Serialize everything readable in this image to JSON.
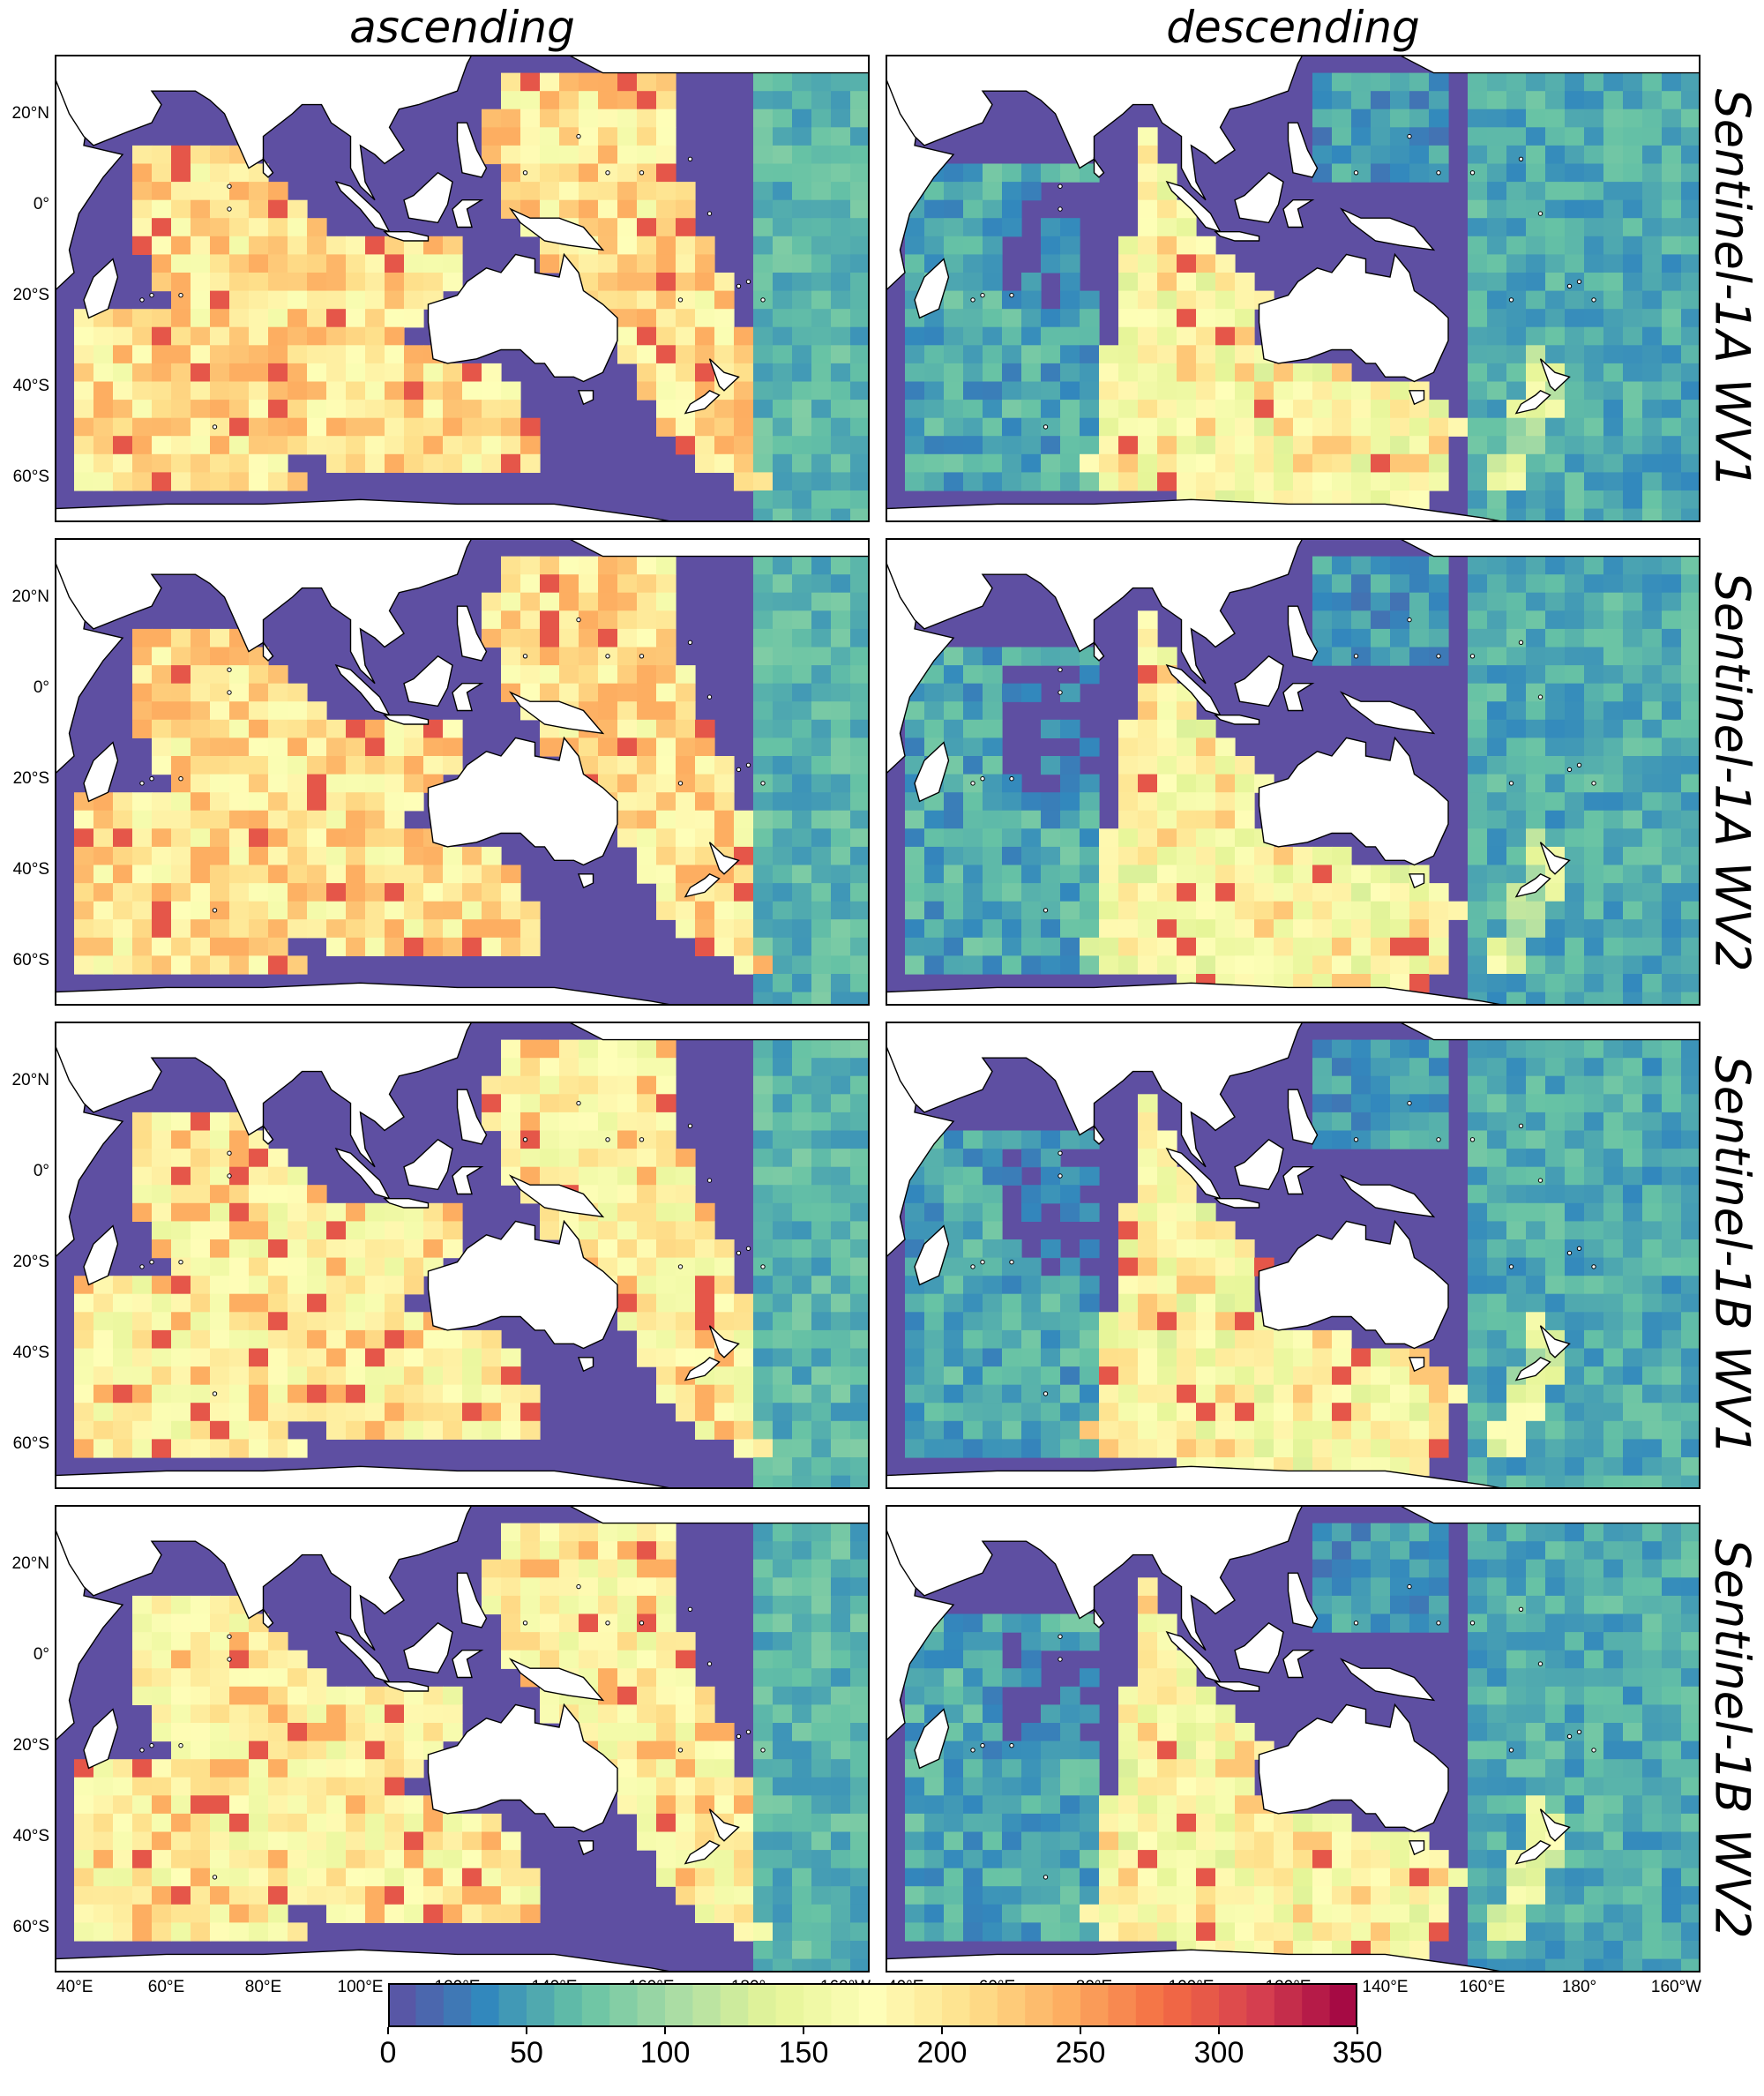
{
  "columns": [
    "ascending",
    "descending"
  ],
  "rows": [
    "Sentinel-1A WV1",
    "Sentinel-1A WV2",
    "Sentinel-1B WV1",
    "Sentinel-1B WV2"
  ],
  "lat_ticks": [
    "20°N",
    "0°",
    "20°S",
    "40°S",
    "60°S"
  ],
  "lon_ticks": [
    "40°E",
    "60°E",
    "80°E",
    "100°E",
    "120°E",
    "140°E",
    "160°E",
    "180°",
    "160°W"
  ],
  "colorbar": {
    "ticks": [
      "0",
      "50",
      "100",
      "150",
      "200",
      "250",
      "300",
      "350"
    ],
    "min": 0,
    "max": 350,
    "colors": [
      "#5e4fa2",
      "#3288bd",
      "#66c2a5",
      "#abdda4",
      "#e6f598",
      "#fefeb8",
      "#fee08b",
      "#fdae61",
      "#f46d43",
      "#d53e4f",
      "#9e0142"
    ]
  },
  "colors": {
    "land": "#ffffff",
    "ocean_zero": "#5e4fa2",
    "coastline": "#000000"
  }
}
